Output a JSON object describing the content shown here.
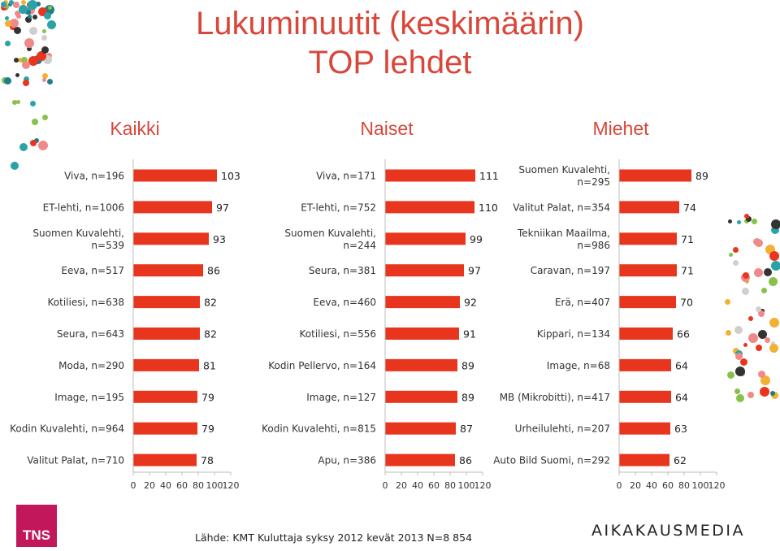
{
  "title_line1": "Lukuminuutit (keskimäärin)",
  "title_line2": "TOP lehdet",
  "source": "Lähde: KMT Kuluttaja syksy 2012 kevät 2013 N=8 854",
  "logo_left": "TNS",
  "logo_right": "AIKAKAUSMEDIA",
  "colors": {
    "bar": "#e8361e",
    "title": "#d8473a"
  },
  "chart_data": [
    {
      "type": "bar",
      "orientation": "horizontal",
      "title": "Kaikki",
      "xlim": [
        0,
        120
      ],
      "x_ticks": [
        "0",
        "20",
        "40",
        "60",
        "80",
        "100",
        "120"
      ],
      "categories": [
        [
          "Viva, n=196"
        ],
        [
          "ET-lehti, n=1006"
        ],
        [
          "Suomen Kuvalehti,",
          "n=539"
        ],
        [
          "Eeva, n=517"
        ],
        [
          "Kotiliesi, n=638"
        ],
        [
          "Seura, n=643"
        ],
        [
          "Moda, n=290"
        ],
        [
          "Image, n=195"
        ],
        [
          "Kodin Kuvalehti, n=964"
        ],
        [
          "Valitut Palat, n=710"
        ]
      ],
      "values": [
        103,
        97,
        93,
        86,
        82,
        82,
        81,
        79,
        79,
        78
      ]
    },
    {
      "type": "bar",
      "orientation": "horizontal",
      "title": "Naiset",
      "xlim": [
        0,
        120
      ],
      "x_ticks": [
        "0",
        "20",
        "40",
        "60",
        "80",
        "100",
        "120"
      ],
      "categories": [
        [
          "Viva, n=171"
        ],
        [
          "ET-lehti, n=752"
        ],
        [
          "Suomen Kuvalehti,",
          "n=244"
        ],
        [
          "Seura, n=381"
        ],
        [
          "Eeva, n=460"
        ],
        [
          "Kotiliesi, n=556"
        ],
        [
          "Kodin Pellervo, n=164"
        ],
        [
          "Image, n=127"
        ],
        [
          "Kodin Kuvalehti, n=815"
        ],
        [
          "Apu, n=386"
        ]
      ],
      "values": [
        111,
        110,
        99,
        97,
        92,
        91,
        89,
        89,
        87,
        86
      ]
    },
    {
      "type": "bar",
      "orientation": "horizontal",
      "title": "Miehet",
      "xlim": [
        0,
        120
      ],
      "x_ticks": [
        "0",
        "20",
        "40",
        "60",
        "80",
        "100",
        "120"
      ],
      "categories": [
        [
          "Suomen Kuvalehti,",
          "n=295"
        ],
        [
          "Valitut Palat, n=354"
        ],
        [
          "Tekniikan Maailma,",
          "n=986"
        ],
        [
          "Caravan, n=197"
        ],
        [
          "Erä, n=407"
        ],
        [
          "Kippari, n=134"
        ],
        [
          "Image, n=68"
        ],
        [
          "MB (Mikrobitti), n=417"
        ],
        [
          "Urheilulehti, n=207"
        ],
        [
          "Auto Bild Suomi, n=292"
        ]
      ],
      "values": [
        89,
        74,
        71,
        71,
        70,
        66,
        64,
        64,
        63,
        62
      ]
    }
  ]
}
